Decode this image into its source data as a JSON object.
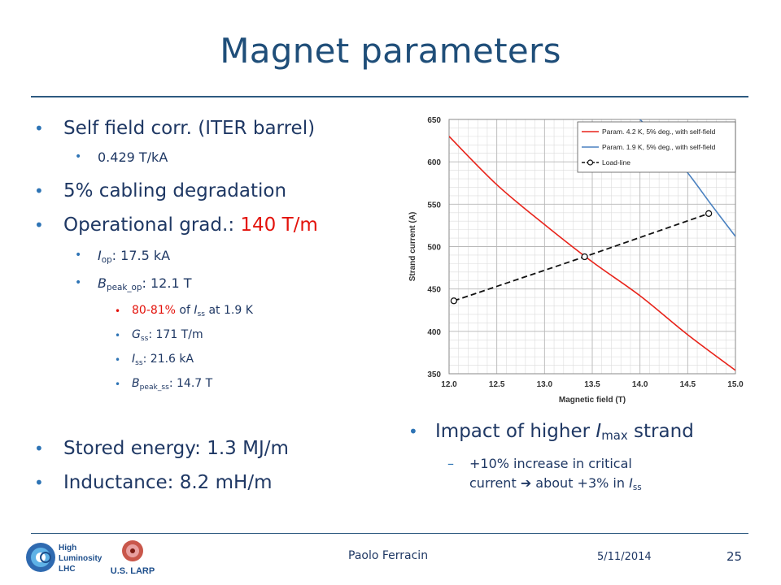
{
  "slide": {
    "title": "Magnet parameters",
    "left_bullets": {
      "self_field": "Self field corr. (ITER barrel)",
      "self_field_value": "0.429 T/kA",
      "cabling": "5% cabling degradation",
      "op_grad_label": "Operational grad.: ",
      "op_grad_value": "140 T/m",
      "iop_sym": "I",
      "iop_sub": "op",
      "iop_val": ": 17.5 kA",
      "bpeak_sym": "B",
      "bpeak_sub": "peak_op",
      "bpeak_val": ": 12.1 T",
      "frac_red": "80-81%",
      "frac_rest": " of ",
      "frac_sym": "I",
      "frac_sub": "ss",
      "frac_tail": " at 1.9 K",
      "gss_sym": "G",
      "gss_sub": "ss",
      "gss_val": ": 171 T/m",
      "iss_sym": "I",
      "iss_sub": "ss",
      "iss_val": ": 21.6 kA",
      "bss_sym": "B",
      "bss_sub": "peak_ss",
      "bss_val": ": 14.7 T",
      "stored_energy": "Stored energy: 1.3 MJ/m",
      "inductance": "Inductance: 8.2 mH/m"
    },
    "right_bullets": {
      "impact_pre": "Impact of higher ",
      "impact_sym": "I",
      "impact_sub": "max",
      "impact_post": " strand",
      "dash": "–",
      "detail_line1": "+10% increase in critical",
      "detail_line2_pre": "current ",
      "arrow": "➔",
      "detail_line2_mid": " about +3% in ",
      "detail_sym": "I",
      "detail_sub": "ss"
    },
    "footer": {
      "author": "Paolo Ferracin",
      "date": "5/11/2014",
      "page": "25",
      "logo_hl": "High Luminosity LHC",
      "logo_larp": "U.S. LARP"
    }
  },
  "chart_data": {
    "type": "line",
    "xlabel": "Magnetic field (T)",
    "ylabel": "Strand current (A)",
    "xlim": [
      12.0,
      15.0
    ],
    "ylim": [
      350,
      650
    ],
    "xticks": [
      "12.0",
      "12.5",
      "13.0",
      "13.5",
      "14.0",
      "14.5",
      "15.0"
    ],
    "yticks": [
      "350",
      "400",
      "450",
      "500",
      "550",
      "600",
      "650"
    ],
    "grid": true,
    "legend_position": "top-right",
    "series": [
      {
        "name": "Param. 4.2 K, 5% deg., with self-field",
        "color": "#e8231a",
        "style": "solid",
        "x": [
          12.0,
          12.5,
          13.0,
          13.5,
          14.0,
          14.5,
          15.0
        ],
        "y": [
          630,
          573,
          526,
          482,
          442,
          396,
          354
        ]
      },
      {
        "name": "Param. 1.9 K, 5% deg., with self-field",
        "color": "#4a81c0",
        "style": "solid",
        "x": [
          14.0,
          14.25,
          14.5,
          14.75,
          15.0
        ],
        "y": [
          650,
          620,
          587,
          549,
          512
        ]
      },
      {
        "name": "Load-line",
        "color": "#111111",
        "style": "dashed",
        "markers": "circle",
        "x": [
          12.05,
          13.42,
          14.72
        ],
        "y": [
          436,
          488,
          539
        ]
      }
    ]
  }
}
